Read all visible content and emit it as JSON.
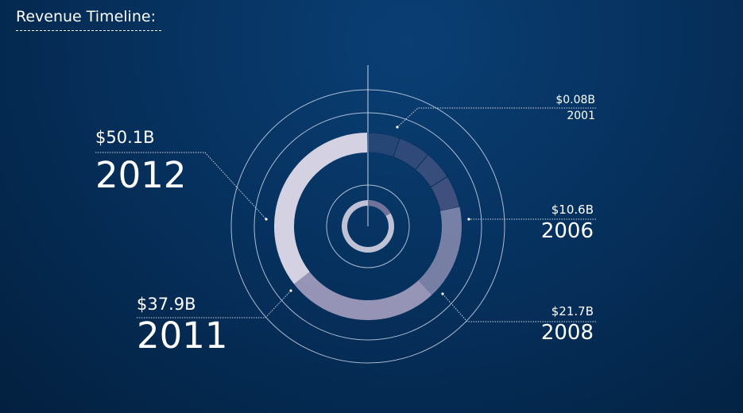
{
  "title": "Revenue Timeline:",
  "colors": {
    "ring_light": "#d4d2e2",
    "ring_mid": "#9e9abc",
    "ring_dark": "#5f5f8c",
    "guide": "#c9d4e6"
  },
  "labels": [
    {
      "amount": "$50.1B",
      "year": "2012"
    },
    {
      "amount": "$37.9B",
      "year": "2011"
    },
    {
      "amount": "$0.08B",
      "year": "2001"
    },
    {
      "amount": "$10.6B",
      "year": "2006"
    },
    {
      "amount": "$21.7B",
      "year": "2008"
    }
  ],
  "chart_data": {
    "type": "radial",
    "title": "Revenue Timeline:",
    "unit": "$B",
    "points": [
      {
        "year": "2001",
        "value": 0.08
      },
      {
        "year": "2006",
        "value": 10.6
      },
      {
        "year": "2008",
        "value": 21.7
      },
      {
        "year": "2011",
        "value": 37.9
      },
      {
        "year": "2012",
        "value": 50.1
      }
    ],
    "grid": true
  }
}
